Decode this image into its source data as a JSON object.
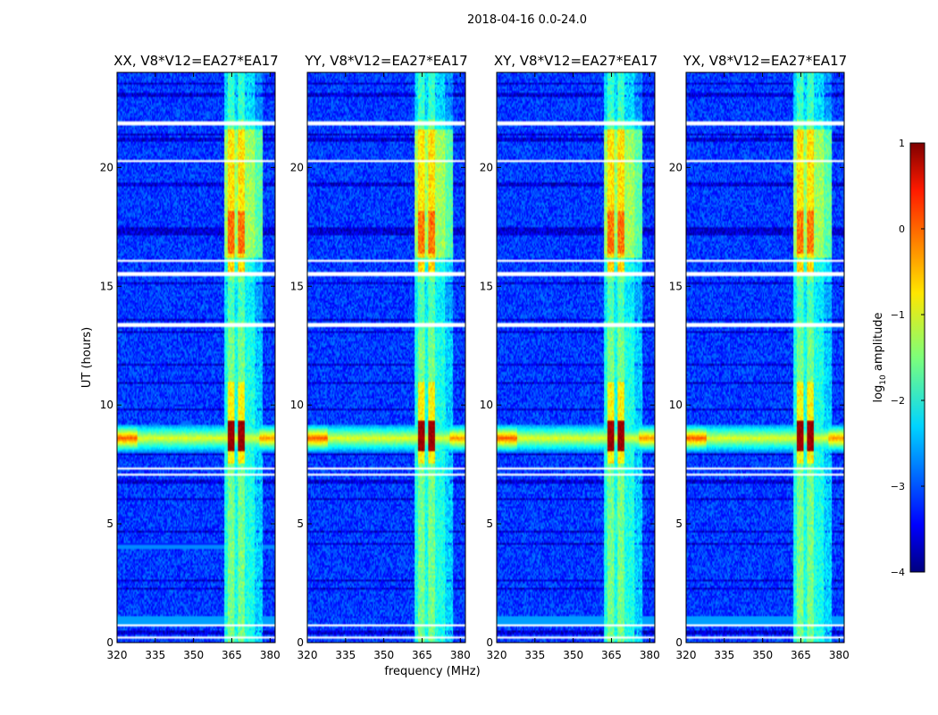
{
  "title": "2018-04-16 0.0-24.0",
  "chart_data": {
    "type": "heatmap",
    "suptitle": "2018-04-16 0.0-24.0",
    "xlabel": "frequency (MHz)",
    "ylabel": "UT (hours)",
    "xlim": [
      320,
      382
    ],
    "ylim": [
      0,
      24
    ],
    "xticks": [
      320,
      335,
      350,
      365,
      380
    ],
    "yticks": [
      0,
      5,
      10,
      15,
      20
    ],
    "panels": [
      {
        "title": "XX, V8*V12=EA27*EA17"
      },
      {
        "title": "YY, V8*V12=EA27*EA17"
      },
      {
        "title": "XY, V8*V12=EA27*EA17"
      },
      {
        "title": "YX, V8*V12=EA27*EA17"
      }
    ],
    "colorbar": {
      "label_prefix": "log",
      "label_sub": "10",
      "label_suffix": " amplitude",
      "range": [
        -4,
        1
      ],
      "ticks": [
        1,
        0,
        -1,
        -2,
        -3,
        -4
      ],
      "tick_labels": [
        "1",
        "0",
        "−1",
        "−2",
        "−3",
        "−4"
      ],
      "colormap": "jet"
    },
    "features": {
      "rfi_band_mhz": [
        362,
        377
      ],
      "strong_rfi_mhz": [
        [
          363.5,
          366.2
        ],
        [
          367.2,
          370
        ]
      ],
      "broadband_event_ut": [
        8.0,
        9.2
      ],
      "bright_rfi_ut": [
        15.5,
        18.2
      ],
      "flagged_gaps_ut": [
        [
          0.15,
          0.25
        ],
        [
          0.7,
          0.8
        ],
        [
          7.05,
          7.15
        ],
        [
          7.3,
          7.4
        ],
        [
          13.0,
          13.05
        ],
        [
          13.3,
          13.45
        ],
        [
          15.45,
          15.6
        ],
        [
          16.05,
          16.15
        ],
        [
          20.25,
          20.3
        ],
        [
          21.75,
          21.85
        ],
        [
          21.9,
          21.95
        ]
      ]
    }
  }
}
